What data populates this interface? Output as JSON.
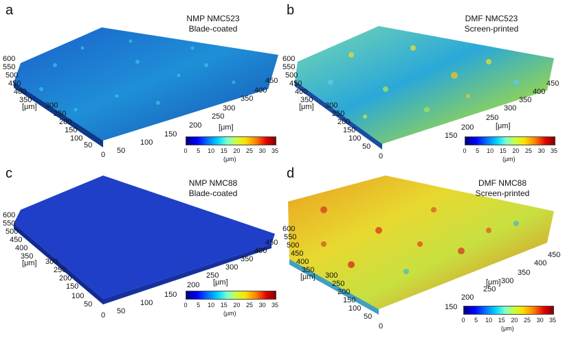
{
  "panels": [
    {
      "label": "a",
      "title1": "NMP NMC523",
      "title2": "Blade-coated",
      "palette": "low"
    },
    {
      "label": "b",
      "title1": "DMF NMC523",
      "title2": "Screen-printed",
      "palette": "mid"
    },
    {
      "label": "c",
      "title1": "NMP NMC88",
      "title2": "Blade-coated",
      "palette": "flat"
    },
    {
      "label": "d",
      "title1": "DMF NMC88",
      "title2": "Screen-printed",
      "palette": "high"
    }
  ],
  "y_ticks": [
    "600",
    "550",
    "500",
    "450",
    "400",
    "350",
    "300",
    "250",
    "200",
    "150",
    "100",
    "50",
    "0"
  ],
  "x_ticks": [
    "50",
    "100",
    "150",
    "200",
    "250",
    "300",
    "350",
    "400",
    "450"
  ],
  "axis_unit": "[μm]",
  "colorbar": {
    "ticks": [
      "0",
      "5",
      "10",
      "15",
      "20",
      "25",
      "30",
      "35"
    ],
    "unit": "(μm)"
  }
}
